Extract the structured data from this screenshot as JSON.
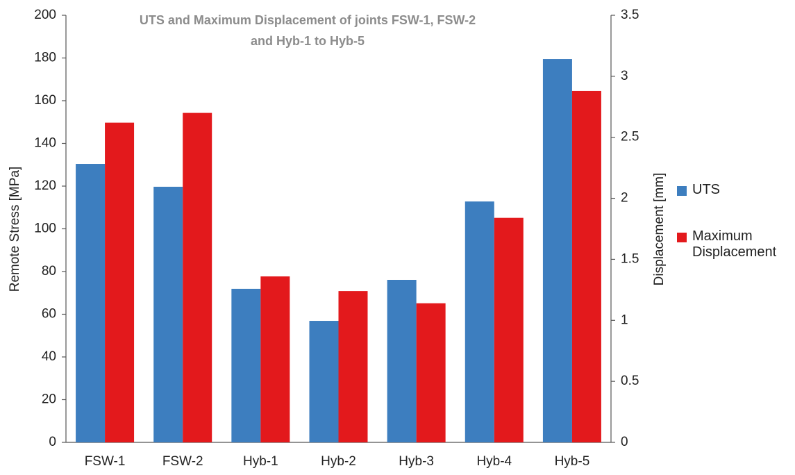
{
  "chart_data": {
    "type": "bar",
    "title": [
      "UTS and Maximum Displacement of joints FSW-1, FSW-2",
      "and Hyb-1 to Hyb-5"
    ],
    "ylabel": "Remote Stress [MPa]",
    "y2label": "Displacement [mm]",
    "categories": [
      "FSW-1",
      "FSW-2",
      "Hyb-1",
      "Hyb-2",
      "Hyb-3",
      "Hyb-4",
      "Hyb-5"
    ],
    "series": [
      {
        "name": "UTS",
        "color": "#3d7ebf",
        "values": [
          130.4,
          119.7,
          71.9,
          56.9,
          76.1,
          112.8,
          179.5
        ]
      },
      {
        "name": "Maximum Displacement",
        "color": "#e3191c",
        "axis": "y2",
        "values": [
          2.62,
          2.7,
          1.36,
          1.24,
          1.14,
          1.84,
          2.88
        ]
      }
    ],
    "ylim": [
      0,
      200
    ],
    "yticks": [
      0,
      20,
      40,
      60,
      80,
      100,
      120,
      140,
      160,
      180,
      200
    ],
    "y2lim": [
      0,
      3.5
    ],
    "y2ticks": [
      0,
      0.5,
      1,
      1.5,
      2,
      2.5,
      3,
      3.5
    ],
    "legend": "right",
    "grid": false
  }
}
